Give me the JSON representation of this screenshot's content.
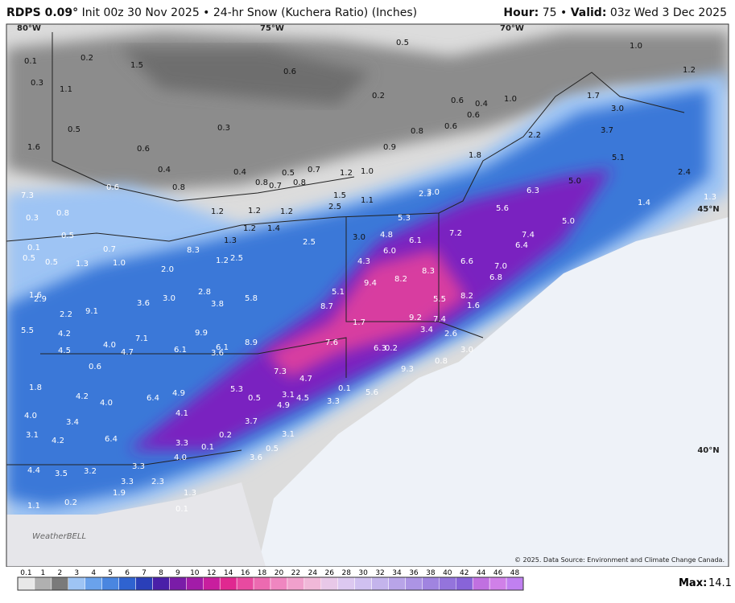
{
  "header": {
    "model": "RDPS 0.09°",
    "description": "Init 00z 30 Nov 2025 • 24-hr Snow (Kuchera Ratio) (Inches)",
    "hour_label": "Hour:",
    "hour": "75",
    "separator": "•",
    "valid_label": "Valid:",
    "valid": "03z Wed 3 Dec 2025"
  },
  "grid_labels": [
    "80°W",
    "75°W",
    "70°W",
    "45°N",
    "40°N"
  ],
  "map_labels": [
    "0.1",
    "0.2",
    "1.5",
    "0.6",
    "0.5",
    "1.0",
    "1.2",
    "0.3",
    "1.1",
    "0.2",
    "0.6",
    "0.4",
    "1.0",
    "1.7",
    "3.0",
    "0.5",
    "0.3",
    "0.8",
    "0.6",
    "0.6",
    "3.7",
    "2.2",
    "1.6",
    "0.6",
    "0.9",
    "1.8",
    "5.1",
    "0.4",
    "0.4",
    "0.5",
    "0.7",
    "1.2",
    "1.0",
    "2.4",
    "0.8",
    "0.7",
    "0.8",
    "5.0",
    "0.6",
    "0.8",
    "6.3",
    "7.3",
    "1.5",
    "2.3",
    "3.0",
    "1.1",
    "1.4",
    "1.3",
    "2.5",
    "5.6",
    "0.8",
    "1.2",
    "1.2",
    "1.2",
    "5.3",
    "5.0",
    "0.3",
    "1.2",
    "1.4",
    "4.8",
    "7.2",
    "7.4",
    "0.5",
    "1.3",
    "2.5",
    "3.0",
    "6.1",
    "6.4",
    "0.1",
    "0.7",
    "8.3",
    "6.0",
    "0.5",
    "0.5",
    "1.3",
    "1.0",
    "1.2",
    "2.5",
    "4.3",
    "6.6",
    "7.0",
    "8.3",
    "6.8",
    "2.0",
    "9.4",
    "8.2",
    "2.8",
    "5.1",
    "8.2",
    "1.6",
    "2.9",
    "3.0",
    "3.6",
    "3.8",
    "5.8",
    "8.7",
    "5.5",
    "1.6",
    "2.2",
    "9.1",
    "9.2",
    "7.4",
    "1.7",
    "5.5",
    "9.9",
    "3.4",
    "2.6",
    "4.2",
    "7.1",
    "8.9",
    "7.6",
    "6.3",
    "0.2",
    "3.0",
    "4.0",
    "4.7",
    "6.1",
    "6.1",
    "3.6",
    "4.5",
    "0.6",
    "0.8",
    "9.3",
    "7.3",
    "4.7",
    "1.8",
    "0.1",
    "5.6",
    "5.3",
    "4.9",
    "3.1",
    "4.5",
    "4.2",
    "4.0",
    "6.4",
    "0.5",
    "3.3",
    "4.9",
    "4.1",
    "4.0",
    "3.4",
    "3.7",
    "0.2",
    "3.1",
    "3.1",
    "4.2",
    "6.4",
    "3.3",
    "0.1",
    "0.5",
    "3.6",
    "4.0",
    "3.3",
    "4.4",
    "3.5",
    "3.2",
    "3.3",
    "2.3",
    "1.9",
    "1.3",
    "1.1",
    "0.2",
    "0.1"
  ],
  "logo": "WeatherBELL",
  "copyright": "© 2025. Data Source: Environment and Climate Change Canada.",
  "legend": {
    "ticks": [
      0.1,
      1,
      2,
      3,
      4,
      5,
      6,
      7,
      8,
      9,
      10,
      12,
      14,
      16,
      18,
      20,
      22,
      24,
      26,
      28,
      30,
      32,
      34,
      36,
      38,
      40,
      42,
      44,
      46,
      48
    ],
    "colors": [
      "#e8e8e8",
      "#b0b0b0",
      "#7a7a7a",
      "#9ec4f4",
      "#6aa2ec",
      "#4a86e0",
      "#2f63d0",
      "#2a3fb8",
      "#4a1fa8",
      "#7a1ca8",
      "#a21ca8",
      "#c81e9e",
      "#e02890",
      "#e84aa0",
      "#ec6ab0",
      "#ef86c0",
      "#f0a0cc",
      "#f0b8d8",
      "#e8c8e8",
      "#dcc8f0",
      "#d0c0f0",
      "#c4b4ec",
      "#b8a4e8",
      "#ac94e4",
      "#a084e0",
      "#9474dc",
      "#8864d8",
      "#c070e0",
      "#d080e8",
      "#c080f0"
    ]
  },
  "max_label": "Max:",
  "max": "14.1"
}
